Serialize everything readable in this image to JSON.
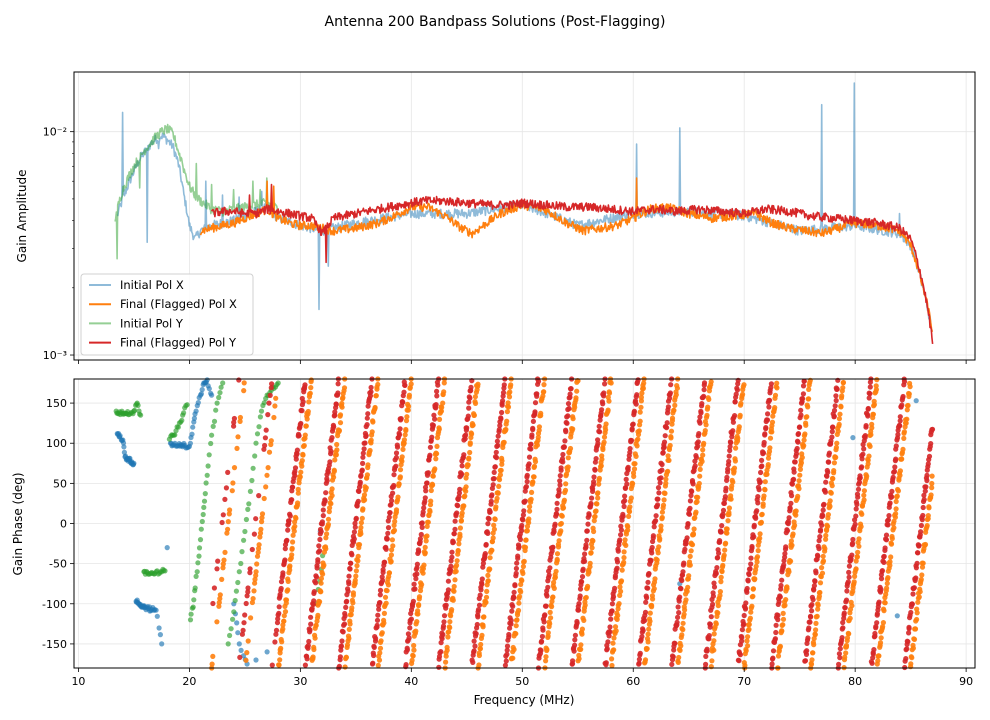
{
  "figure": {
    "title": "Antenna 200 Bandpass Solutions (Post-Flagging)",
    "background": "#ffffff"
  },
  "chart_data": [
    {
      "type": "line",
      "panel": "top",
      "yscale": "log",
      "title": "",
      "xlabel": "",
      "ylabel": "Gain Amplitude",
      "xlim": [
        9.6,
        90.8
      ],
      "ylim": [
        0.00095,
        0.0185
      ],
      "ytick_values": [
        0.001,
        0.01
      ],
      "ytick_labels": [
        "10⁻³",
        "10⁻²"
      ],
      "xtick_values": [
        10,
        20,
        30,
        40,
        50,
        60,
        70,
        80,
        90
      ],
      "grid": true,
      "legend": "lower-left",
      "legend_entries": [
        "Initial Pol X",
        "Final (Flagged) Pol X",
        "Initial Pol Y",
        "Final (Flagged) Pol Y"
      ],
      "series": [
        {
          "name": "Initial Pol X",
          "color": "#1f77b4",
          "alpha": 0.5,
          "x": [
            13.5,
            14.5,
            15.5,
            16.5,
            17.0,
            17.5,
            18.0,
            18.5,
            19.0,
            19.5,
            20.0,
            20.5,
            21.0,
            22.0,
            23.0,
            24.0,
            25.0,
            26.0,
            27.0,
            28.0,
            30.0,
            32.0,
            35.0,
            40.0,
            45.0,
            50.0,
            55.0,
            60.0,
            65.0,
            70.0,
            75.0,
            80.0,
            84.0,
            85.0,
            86.0,
            87.0
          ],
          "y": [
            0.0042,
            0.0058,
            0.0075,
            0.0088,
            0.0093,
            0.0096,
            0.0092,
            0.0086,
            0.0072,
            0.0052,
            0.0038,
            0.0033,
            0.0036,
            0.0038,
            0.0039,
            0.004,
            0.0042,
            0.0044,
            0.0046,
            0.0041,
            0.0038,
            0.0036,
            0.0039,
            0.0043,
            0.0043,
            0.0047,
            0.0038,
            0.0043,
            0.0044,
            0.0042,
            0.0036,
            0.0038,
            0.0035,
            0.0031,
            0.0021,
            0.0012
          ]
        },
        {
          "name": "Final (Flagged) Pol X",
          "color": "#ff7f0e",
          "alpha": 1.0,
          "x": [
            21.0,
            22.0,
            23.0,
            24.0,
            25.0,
            26.0,
            27.0,
            28.0,
            29.0,
            30.0,
            31.0,
            32.0,
            33.0,
            35.0,
            37.0,
            38.5,
            40.0,
            41.5,
            43.0,
            44.5,
            45.5,
            46.5,
            48.0,
            50.0,
            52.0,
            54.0,
            55.5,
            57.0,
            58.5,
            60.0,
            61.5,
            63.0,
            65.0,
            67.0,
            69.0,
            71.0,
            72.5,
            74.0,
            75.5,
            77.0,
            78.5,
            80.0,
            82.0,
            84.0,
            85.0,
            86.0,
            87.0
          ],
          "y": [
            0.0036,
            0.0037,
            0.0038,
            0.0039,
            0.0041,
            0.0043,
            0.0045,
            0.0041,
            0.0039,
            0.0038,
            0.0038,
            0.0037,
            0.0036,
            0.0037,
            0.0039,
            0.0042,
            0.0046,
            0.0046,
            0.0042,
            0.0037,
            0.0035,
            0.0038,
            0.0043,
            0.0047,
            0.0045,
            0.0039,
            0.0036,
            0.0037,
            0.0038,
            0.0041,
            0.0045,
            0.0046,
            0.0043,
            0.0041,
            0.0042,
            0.0043,
            0.0039,
            0.0037,
            0.0036,
            0.0035,
            0.0037,
            0.0039,
            0.0038,
            0.0036,
            0.0031,
            0.0021,
            0.00125
          ]
        },
        {
          "name": "Initial Pol Y",
          "color": "#2ca02c",
          "alpha": 0.5,
          "x": [
            13.3,
            14.0,
            15.0,
            16.0,
            17.0,
            17.5,
            18.0,
            18.5,
            19.0,
            19.5,
            20.0,
            20.5,
            21.0,
            21.5,
            22.0,
            23.0,
            24.0,
            25.0,
            26.0,
            27.0,
            28.0
          ],
          "y": [
            0.0041,
            0.0055,
            0.007,
            0.0083,
            0.0095,
            0.01,
            0.0103,
            0.0098,
            0.0082,
            0.0068,
            0.0057,
            0.0052,
            0.0049,
            0.0047,
            0.0045,
            0.0044,
            0.0045,
            0.0046,
            0.0047,
            0.0048,
            0.0045
          ]
        },
        {
          "name": "Final (Flagged) Pol Y",
          "color": "#d62728",
          "alpha": 1.0,
          "x": [
            22.0,
            23.0,
            24.0,
            25.0,
            26.0,
            27.0,
            28.0,
            29.0,
            30.0,
            31.0,
            32.0,
            33.0,
            34.0,
            35.0,
            37.0,
            39.0,
            41.0,
            43.0,
            45.0,
            47.0,
            49.0,
            50.0,
            52.0,
            54.0,
            56.0,
            58.0,
            60.0,
            62.0,
            64.0,
            66.0,
            68.0,
            70.0,
            72.0,
            74.0,
            76.0,
            78.0,
            80.0,
            82.0,
            84.0,
            85.0,
            86.0,
            87.0
          ],
          "y": [
            0.0043,
            0.0044,
            0.0044,
            0.0043,
            0.0043,
            0.0045,
            0.0044,
            0.0043,
            0.0042,
            0.0041,
            0.0035,
            0.0041,
            0.0042,
            0.0043,
            0.0045,
            0.0047,
            0.0049,
            0.0049,
            0.0048,
            0.0047,
            0.0047,
            0.0048,
            0.0047,
            0.0046,
            0.0046,
            0.0045,
            0.0044,
            0.0045,
            0.0044,
            0.0045,
            0.0044,
            0.0043,
            0.0045,
            0.0044,
            0.0042,
            0.0041,
            0.004,
            0.0039,
            0.0037,
            0.0033,
            0.0022,
            0.0011
          ]
        }
      ]
    },
    {
      "type": "scatter",
      "panel": "bottom",
      "title": "",
      "xlabel": "Frequency (MHz)",
      "ylabel": "Gain Phase (deg)",
      "xlim": [
        9.6,
        90.8
      ],
      "ylim": [
        -180,
        180
      ],
      "xtick_values": [
        10,
        20,
        30,
        40,
        50,
        60,
        70,
        80,
        90
      ],
      "ytick_values": [
        -150,
        -100,
        -50,
        0,
        50,
        100,
        150
      ],
      "grid": true,
      "phase_wrap": {
        "description": "Final (flagged) phases wrap linearly from -180 to 180 deg every ~3.0 MHz between 28 and 87 MHz",
        "start_freq": 28.0,
        "end_freq": 87.0,
        "period_mhz": 3.0,
        "wrap_start_freqs": [
          28.0,
          31.0,
          34.0,
          37.0,
          40.0,
          43.0,
          46.0,
          49.0,
          52.0,
          55.0,
          58.0,
          61.0,
          64.0,
          67.0,
          70.0,
          73.0,
          76.0,
          79.0,
          82.0,
          85.0
        ]
      },
      "series": [
        {
          "name": "Initial Pol X",
          "color": "#1f77b4",
          "x": [
            13.5,
            13.7,
            14.0,
            14.2,
            14.4,
            14.6,
            14.8,
            15.0,
            15.2,
            15.4,
            15.6,
            15.8,
            16.0,
            16.3,
            16.6,
            17.0,
            17.5,
            18.0,
            18.3,
            18.6,
            19.0,
            19.3,
            19.6,
            20.0,
            20.3,
            20.6,
            21.0,
            21.3,
            21.6,
            22.0,
            24.0,
            24.5,
            25.2,
            26.0,
            27.0,
            31.8,
            44.5,
            64.2,
            79.8,
            83.8,
            85.5
          ],
          "y": [
            112,
            108,
            104,
            83,
            81,
            79,
            77,
            75,
            -97,
            -99,
            -101,
            -103,
            -104,
            -106,
            -107,
            -108,
            -150,
            -30,
            100,
            98,
            97,
            97,
            97,
            96,
            120,
            140,
            160,
            175,
            179,
            160,
            -100,
            -150,
            -175,
            -170,
            -160,
            -10,
            60,
            -75,
            107,
            -115,
            153
          ]
        },
        {
          "name": "Initial Pol Y",
          "color": "#2ca02c",
          "x": [
            13.4,
            13.7,
            14.0,
            14.3,
            14.6,
            15.0,
            15.3,
            15.6,
            15.9,
            16.2,
            16.6,
            17.0,
            17.4,
            17.8,
            18.2,
            18.6,
            19.0,
            19.4,
            19.8,
            20.1,
            20.4,
            20.7,
            21.0,
            21.3,
            21.6,
            22.0,
            22.5,
            23.0,
            23.5,
            24.0,
            24.5,
            25.0,
            25.5,
            26.0,
            26.5,
            27.0,
            27.5,
            28.0,
            31.5,
            32.0
          ],
          "y": [
            140,
            139,
            137,
            137,
            136,
            140,
            150,
            135,
            -60,
            -61,
            -61,
            -60,
            -60,
            -59,
            105,
            110,
            120,
            135,
            148,
            -120,
            -95,
            -60,
            -20,
            20,
            60,
            110,
            150,
            175,
            -150,
            -110,
            -60,
            -10,
            40,
            100,
            140,
            160,
            170,
            175,
            -100,
            -40
          ]
        },
        {
          "name": "Final (Flagged) Pol X",
          "color": "#ff7f0e",
          "x_range": [
            21.5,
            87.0
          ]
        },
        {
          "name": "Final (Flagged) Pol Y",
          "color": "#d62728",
          "x_range": [
            22.0,
            87.0
          ]
        }
      ]
    }
  ]
}
